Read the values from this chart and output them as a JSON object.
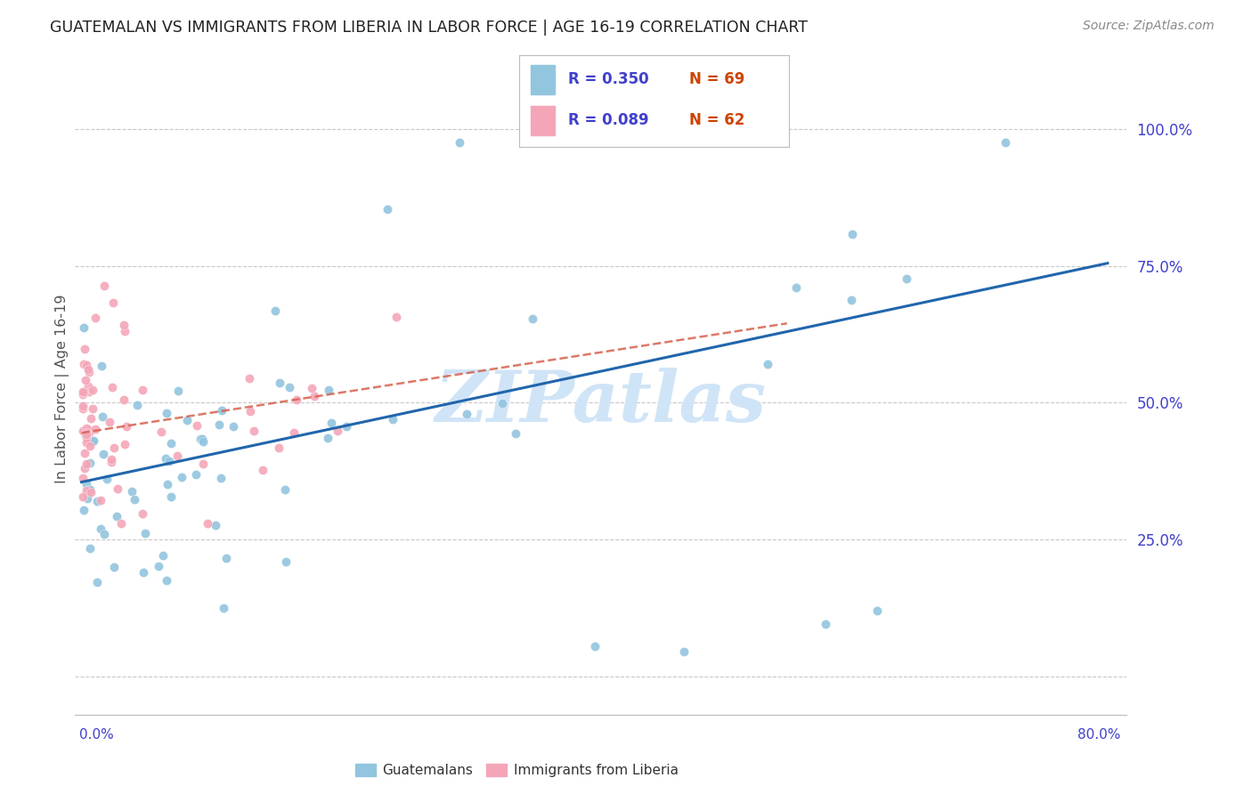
{
  "title": "GUATEMALAN VS IMMIGRANTS FROM LIBERIA IN LABOR FORCE | AGE 16-19 CORRELATION CHART",
  "source": "Source: ZipAtlas.com",
  "ylabel": "In Labor Force | Age 16-19",
  "blue_color": "#92c5de",
  "pink_color": "#f4a6b8",
  "trendline_blue": "#2166ac",
  "trendline_pink": "#d6604d",
  "watermark": "ZIPatlas",
  "watermark_color": "#d0e4f7",
  "background_color": "#ffffff",
  "grid_color": "#c8c8c8",
  "ytick_color": "#4040cc",
  "xtick_color": "#4040cc",
  "title_color": "#222222",
  "source_color": "#888888",
  "ylabel_color": "#555555",
  "legend_blue_r": "R = 0.350",
  "legend_blue_n": "N = 69",
  "legend_pink_r": "R = 0.089",
  "legend_pink_n": "N = 62",
  "legend_r_color": "#4040cc",
  "legend_n_color": "#cc4400",
  "bottom_legend_label1": "Guatemalans",
  "bottom_legend_label2": "Immigrants from Liberia"
}
